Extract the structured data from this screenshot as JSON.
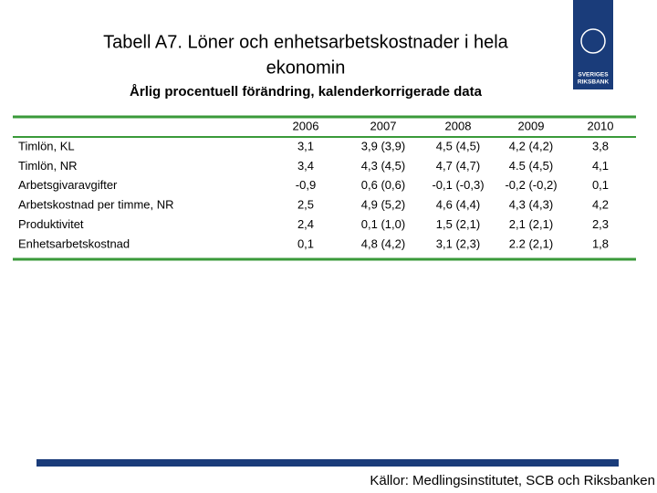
{
  "header": {
    "title_line1": "Tabell A7. Löner och enhetsarbetskostnader i hela",
    "title_line2": "ekonomin",
    "subtitle": "Årlig procentuell förändring, kalenderkorrigerade data"
  },
  "logo": {
    "line1": "SVERIGES",
    "line2": "RIKSBANK"
  },
  "table": {
    "columns": [
      "2006",
      "2007",
      "2008",
      "2009",
      "2010"
    ],
    "rows": [
      [
        "Timlön, KL",
        "3,1",
        "3,9 (3,9)",
        "4,5 (4,5)",
        "4,2 (4,2)",
        "3,8"
      ],
      [
        "Timlön, NR",
        "3,4",
        "4,3 (4,5)",
        "4,7 (4,7)",
        "4.5 (4,5)",
        "4,1"
      ],
      [
        "Arbetsgivaravgifter",
        "-0,9",
        "0,6 (0,6)",
        "-0,1 (-0,3)",
        "-0,2 (-0,2)",
        "0,1"
      ],
      [
        "Arbetskostnad per timme, NR",
        "2,5",
        "4,9 (5,2)",
        "4,6 (4,4)",
        "4,3 (4,3)",
        "4,2"
      ],
      [
        "Produktivitet",
        "2,4",
        "0,1 (1,0)",
        "1,5 (2,1)",
        "2,1 (2,1)",
        "2,3"
      ],
      [
        "Enhetsarbetskostnad",
        "0,1",
        "4,8 (4,2)",
        "3,1 (2,3)",
        "2.2 (2,1)",
        "1,8"
      ]
    ]
  },
  "footer": {
    "source": "Källor: Medlingsinstitutet, SCB och Riksbanken"
  }
}
